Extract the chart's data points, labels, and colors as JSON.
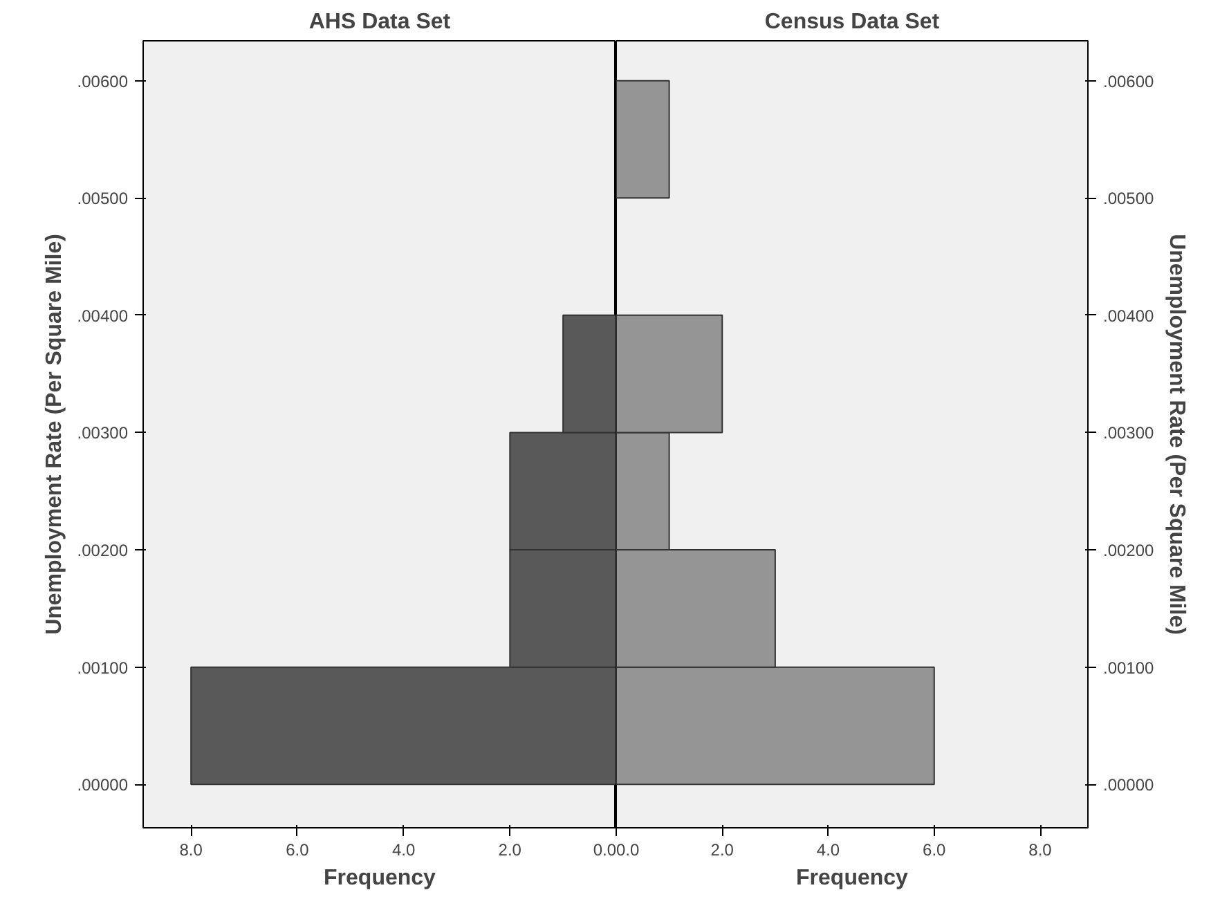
{
  "chart_data": [
    {
      "type": "histogram",
      "title": "AHS Data Set",
      "xlabel": "Frequency",
      "ylabel": "Unemployment Rate (Per Square Mile)",
      "orientation": "horizontal",
      "color": "#595959",
      "bins": [
        0.0,
        0.001,
        0.002,
        0.003,
        0.004,
        0.005,
        0.006
      ],
      "values": [
        8,
        2,
        2,
        1,
        0,
        0
      ],
      "xlim": [
        8.9,
        0
      ],
      "xticks": [
        {
          "value": 8,
          "label": "8.0"
        },
        {
          "value": 6,
          "label": "6.0"
        },
        {
          "value": 4,
          "label": "4.0"
        },
        {
          "value": 2,
          "label": "2.0"
        },
        {
          "value": 0,
          "label": "0.0"
        }
      ],
      "ylim": [
        -0.00037,
        0.00634
      ],
      "yticks": [
        {
          "value": 0,
          "label": ".00000"
        },
        {
          "value": 0.001,
          "label": ".00100"
        },
        {
          "value": 0.002,
          "label": ".00200"
        },
        {
          "value": 0.003,
          "label": ".00300"
        },
        {
          "value": 0.004,
          "label": ".00400"
        },
        {
          "value": 0.005,
          "label": ".00500"
        },
        {
          "value": 0.006,
          "label": ".00600"
        }
      ],
      "grid": false
    },
    {
      "type": "histogram",
      "title": "Census Data Set",
      "xlabel": "Frequency",
      "ylabel": "Unemployment Rate (Per Square Mile)",
      "orientation": "horizontal",
      "color": "#959595",
      "bins": [
        0.0,
        0.001,
        0.002,
        0.003,
        0.004,
        0.005,
        0.006
      ],
      "values": [
        6,
        3,
        1,
        2,
        0,
        1
      ],
      "xlim": [
        0,
        8.9
      ],
      "xticks": [
        {
          "value": 0,
          "label": "0.0"
        },
        {
          "value": 2,
          "label": "2.0"
        },
        {
          "value": 4,
          "label": "4.0"
        },
        {
          "value": 6,
          "label": "6.0"
        },
        {
          "value": 8,
          "label": "8.0"
        }
      ],
      "ylim": [
        -0.00037,
        0.00634
      ],
      "yticks": [
        {
          "value": 0,
          "label": ".00000"
        },
        {
          "value": 0.001,
          "label": ".00100"
        },
        {
          "value": 0.002,
          "label": ".00200"
        },
        {
          "value": 0.003,
          "label": ".00300"
        },
        {
          "value": 0.004,
          "label": ".00400"
        },
        {
          "value": 0.005,
          "label": ".00500"
        },
        {
          "value": 0.006,
          "label": ".00600"
        }
      ],
      "grid": false
    }
  ]
}
